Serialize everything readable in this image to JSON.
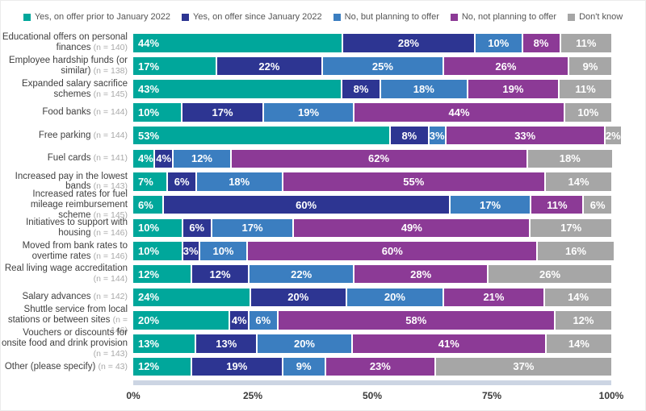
{
  "chart_data": {
    "type": "bar",
    "orientation": "horizontal",
    "stacked": "100%",
    "legend_position": "top",
    "grid": "off",
    "xlabel": "",
    "ylabel": "",
    "x_axis": {
      "ticks": [
        "0%",
        "25%",
        "50%",
        "75%",
        "100%"
      ],
      "range": [
        0,
        100
      ]
    },
    "baseline_strip_color": "#ccd5e3",
    "categories": [
      {
        "label": "Educational offers on personal finances",
        "n": "(n = 140)"
      },
      {
        "label": "Employee hardship funds (or similar)",
        "n": "(n = 138)"
      },
      {
        "label": "Expanded salary sacrifice schemes",
        "n": "(n = 145)"
      },
      {
        "label": "Food banks",
        "n": "(n = 144)"
      },
      {
        "label": "Free parking",
        "n": "(n = 144)"
      },
      {
        "label": "Fuel cards",
        "n": "(n = 141)"
      },
      {
        "label": "Increased pay in the lowest bands",
        "n": "(n = 143)"
      },
      {
        "label": "Increased rates for fuel mileage reimbursement scheme",
        "n": "(n = 145)"
      },
      {
        "label": "Initiatives to support with housing",
        "n": "(n = 146)"
      },
      {
        "label": "Moved from bank rates to overtime rates",
        "n": "(n = 146)"
      },
      {
        "label": "Real living wage accreditation",
        "n": "(n = 144)"
      },
      {
        "label": "Salary advances",
        "n": "(n = 142)"
      },
      {
        "label": "Shuttle service from local stations or between sites",
        "n": "(n = 146)"
      },
      {
        "label": "Vouchers or discounts for onsite food and drink provision",
        "n": "(n = 143)"
      },
      {
        "label": "Other (please specify)",
        "n": "(n = 43)"
      }
    ],
    "series": [
      {
        "name": "Yes, on offer prior to January 2022",
        "color": "#00a79b",
        "values": [
          44,
          17,
          43,
          10,
          53,
          4,
          7,
          6,
          10,
          10,
          12,
          24,
          20,
          13,
          12
        ]
      },
      {
        "name": "Yes, on offer since January 2022",
        "color": "#2d3592",
        "values": [
          28,
          22,
          8,
          17,
          8,
          4,
          6,
          60,
          6,
          3,
          12,
          20,
          4,
          13,
          19
        ]
      },
      {
        "name": "No, but planning to offer",
        "color": "#3b7ec0",
        "values": [
          10,
          25,
          18,
          19,
          3,
          12,
          18,
          17,
          17,
          10,
          22,
          20,
          6,
          20,
          9
        ]
      },
      {
        "name": "No, not planning to offer",
        "color": "#8c3a96",
        "values": [
          8,
          26,
          19,
          44,
          33,
          62,
          55,
          11,
          49,
          60,
          28,
          21,
          58,
          41,
          23
        ]
      },
      {
        "name": "Don't know",
        "color": "#a6a6a6",
        "values": [
          11,
          9,
          11,
          10,
          2,
          18,
          14,
          6,
          17,
          16,
          26,
          14,
          12,
          14,
          37
        ]
      }
    ]
  }
}
